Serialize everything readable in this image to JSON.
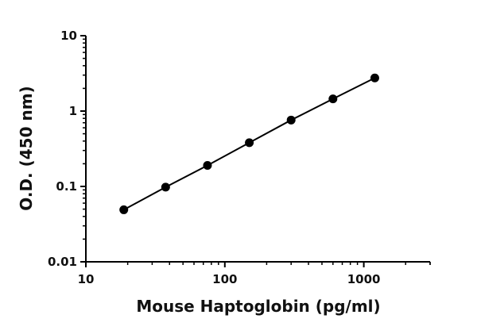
{
  "chart_data": {
    "type": "scatter",
    "title": "",
    "xlabel": "Mouse Haptoglobin (pg/ml)",
    "ylabel": "O.D. (450 nm)",
    "x_scale": "log",
    "y_scale": "log",
    "xlim": [
      10,
      3000
    ],
    "ylim": [
      0.01,
      10
    ],
    "x_ticks": [
      10,
      100,
      1000
    ],
    "x_tick_labels": [
      "10",
      "100",
      "1000"
    ],
    "y_ticks": [
      0.01,
      0.1,
      1,
      10
    ],
    "y_tick_labels": [
      "0.01",
      "0.1",
      "1",
      "10"
    ],
    "grid": false,
    "legend": "none",
    "series": [
      {
        "x": [
          18.75,
          37.5,
          75,
          150,
          300,
          600,
          1200
        ],
        "y": [
          0.049,
          0.098,
          0.19,
          0.38,
          0.76,
          1.45,
          2.75
        ],
        "marker": "circle",
        "color": "#000000",
        "fit_line": true
      }
    ]
  }
}
